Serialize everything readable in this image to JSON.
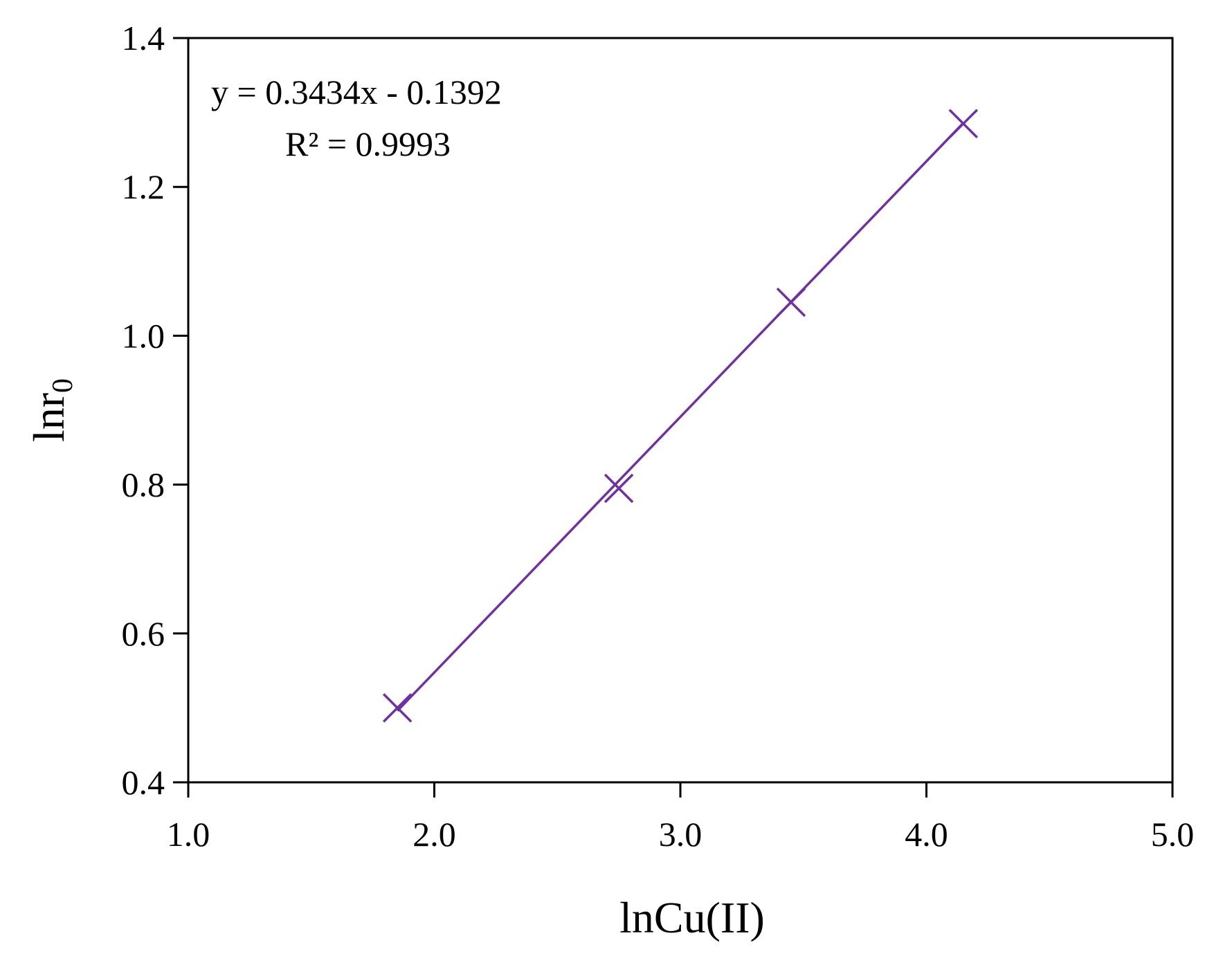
{
  "chart_data": {
    "type": "scatter",
    "xlabel": "lnCu(II)",
    "ylabel_main": "lnr",
    "ylabel_sub": "0",
    "xlim": [
      1.0,
      5.0
    ],
    "ylim": [
      0.4,
      1.4
    ],
    "xticks": [
      1.0,
      2.0,
      3.0,
      4.0,
      5.0
    ],
    "yticks": [
      0.4,
      0.6,
      0.8,
      1.0,
      1.2,
      1.4
    ],
    "xtick_labels": [
      "1.0",
      "2.0",
      "3.0",
      "4.0",
      "5.0"
    ],
    "ytick_labels": [
      "0.4",
      "0.6",
      "0.8",
      "1.0",
      "1.2",
      "1.4"
    ],
    "grid": false,
    "points": [
      {
        "x": 1.85,
        "y": 0.5
      },
      {
        "x": 2.75,
        "y": 0.795
      },
      {
        "x": 3.45,
        "y": 1.045
      },
      {
        "x": 4.15,
        "y": 1.285
      }
    ],
    "trendline": {
      "equation": "y = 0.3434x - 0.1392",
      "r2_label": "R² = 0.9993",
      "slope": 0.3434,
      "intercept": -0.1392,
      "x_range": [
        1.85,
        4.15
      ]
    },
    "colors": {
      "series": "#7030a0",
      "axis": "#000000"
    }
  }
}
